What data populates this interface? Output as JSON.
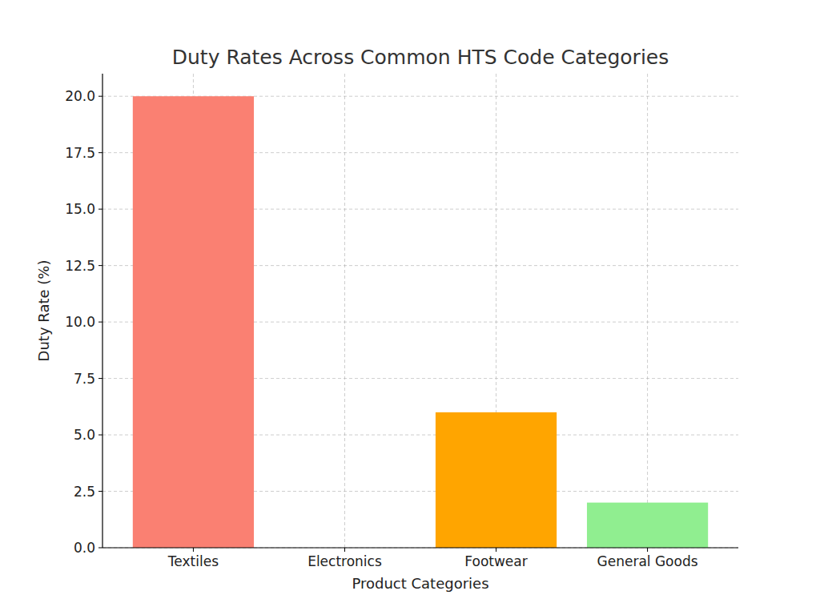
{
  "chart_data": {
    "type": "bar",
    "title": "Duty Rates Across Common HTS Code Categories",
    "x_label": "Product Categories",
    "y_label": "Duty Rate (%)",
    "categories": [
      "Textiles",
      "Electronics",
      "Footwear",
      "General Goods"
    ],
    "values": [
      20,
      0,
      6,
      2
    ],
    "colors": [
      "#fa8072",
      "#87ceeb",
      "#ffa500",
      "#90ee90"
    ],
    "ylim": [
      0,
      21
    ],
    "yticks": [
      {
        "value": 0,
        "label": "0.0"
      },
      2.5,
      {
        "value": 5,
        "label": "5.0"
      },
      7.5,
      {
        "value": 10,
        "label": "10.0"
      },
      12.5,
      {
        "value": 15,
        "label": "15.0"
      },
      17.5,
      {
        "value": 20,
        "label": "20.0"
      }
    ],
    "grid": true
  }
}
